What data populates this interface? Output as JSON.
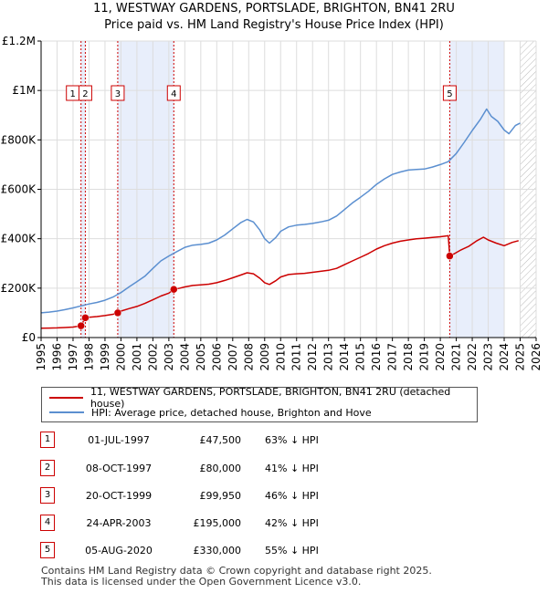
{
  "chart_data": {
    "type": "line",
    "title": "11, WESTWAY GARDENS, PORTSLADE, BRIGHTON, BN41 2RU",
    "subtitle": "Price paid vs. HM Land Registry's House Price Index (HPI)",
    "xlabel": "",
    "ylabel": "",
    "xlim": [
      1995,
      2026
    ],
    "ylim": [
      0,
      1200000
    ],
    "x_ticks": [
      "1995",
      "1996",
      "1997",
      "1998",
      "1999",
      "2000",
      "2001",
      "2002",
      "2003",
      "2004",
      "2005",
      "2006",
      "2007",
      "2008",
      "2009",
      "2010",
      "2011",
      "2012",
      "2013",
      "2014",
      "2015",
      "2016",
      "2017",
      "2018",
      "2019",
      "2020",
      "2021",
      "2022",
      "2023",
      "2024",
      "2025",
      "2026"
    ],
    "y_ticks": [
      {
        "value": 0,
        "label": "£0"
      },
      {
        "value": 200000,
        "label": "£200K"
      },
      {
        "value": 400000,
        "label": "£400K"
      },
      {
        "value": 600000,
        "label": "£600K"
      },
      {
        "value": 800000,
        "label": "£800K"
      },
      {
        "value": 1000000,
        "label": "£1M"
      },
      {
        "value": 1200000,
        "label": "£1.2M"
      }
    ],
    "shaded_ranges": [
      [
        1997.5,
        1997.77
      ],
      [
        1999.8,
        2003.31
      ],
      [
        2020.59,
        2024.0
      ]
    ],
    "future_hatch_start": 2025.0,
    "series": [
      {
        "name": "11, WESTWAY GARDENS, PORTSLADE, BRIGHTON, BN41 2RU (detached house)",
        "color": "#cc0000",
        "points": [
          [
            1995.0,
            38000
          ],
          [
            1995.5,
            38500
          ],
          [
            1996.0,
            39000
          ],
          [
            1996.5,
            40500
          ],
          [
            1997.0,
            42500
          ],
          [
            1997.5,
            47500
          ],
          [
            1997.77,
            80000
          ],
          [
            1998.0,
            82000
          ],
          [
            1998.5,
            85000
          ],
          [
            1999.0,
            89000
          ],
          [
            1999.5,
            94000
          ],
          [
            1999.8,
            99950
          ],
          [
            2000.0,
            107000
          ],
          [
            2000.5,
            117000
          ],
          [
            2001.0,
            126000
          ],
          [
            2001.5,
            138000
          ],
          [
            2002.0,
            153000
          ],
          [
            2002.5,
            168000
          ],
          [
            2003.0,
            180000
          ],
          [
            2003.31,
            195000
          ],
          [
            2003.7,
            200000
          ],
          [
            2004.0,
            205000
          ],
          [
            2004.5,
            211000
          ],
          [
            2005.0,
            213000
          ],
          [
            2005.5,
            216000
          ],
          [
            2006.0,
            222000
          ],
          [
            2006.5,
            231000
          ],
          [
            2007.0,
            242000
          ],
          [
            2007.5,
            253000
          ],
          [
            2007.9,
            262000
          ],
          [
            2008.3,
            258000
          ],
          [
            2008.7,
            240000
          ],
          [
            2009.0,
            222000
          ],
          [
            2009.3,
            215000
          ],
          [
            2009.7,
            230000
          ],
          [
            2010.0,
            245000
          ],
          [
            2010.5,
            255000
          ],
          [
            2011.0,
            258000
          ],
          [
            2011.5,
            260000
          ],
          [
            2012.0,
            264000
          ],
          [
            2012.5,
            268000
          ],
          [
            2013.0,
            272000
          ],
          [
            2013.5,
            280000
          ],
          [
            2014.0,
            295000
          ],
          [
            2014.5,
            310000
          ],
          [
            2015.0,
            325000
          ],
          [
            2015.5,
            340000
          ],
          [
            2016.0,
            358000
          ],
          [
            2016.5,
            372000
          ],
          [
            2017.0,
            382000
          ],
          [
            2017.5,
            390000
          ],
          [
            2018.0,
            395000
          ],
          [
            2018.5,
            400000
          ],
          [
            2019.0,
            402000
          ],
          [
            2019.5,
            405000
          ],
          [
            2020.0,
            408000
          ],
          [
            2020.5,
            412000
          ],
          [
            2020.59,
            330000
          ],
          [
            2020.9,
            340000
          ],
          [
            2021.3,
            355000
          ],
          [
            2021.8,
            370000
          ],
          [
            2022.3,
            392000
          ],
          [
            2022.7,
            406000
          ],
          [
            2023.0,
            395000
          ],
          [
            2023.5,
            382000
          ],
          [
            2024.0,
            372000
          ],
          [
            2024.5,
            385000
          ],
          [
            2024.9,
            392000
          ]
        ]
      },
      {
        "name": "HPI: Average price, detached house, Brighton and Hove",
        "color": "#5b8fd0",
        "points": [
          [
            1995.0,
            100000
          ],
          [
            1995.5,
            103000
          ],
          [
            1996.0,
            107000
          ],
          [
            1996.5,
            113000
          ],
          [
            1997.0,
            120000
          ],
          [
            1997.5,
            128000
          ],
          [
            1998.0,
            136000
          ],
          [
            1998.5,
            142000
          ],
          [
            1999.0,
            151000
          ],
          [
            1999.5,
            164000
          ],
          [
            2000.0,
            182000
          ],
          [
            2000.5,
            205000
          ],
          [
            2001.0,
            226000
          ],
          [
            2001.5,
            248000
          ],
          [
            2002.0,
            280000
          ],
          [
            2002.5,
            310000
          ],
          [
            2003.0,
            330000
          ],
          [
            2003.5,
            348000
          ],
          [
            2004.0,
            365000
          ],
          [
            2004.5,
            374000
          ],
          [
            2005.0,
            377000
          ],
          [
            2005.5,
            382000
          ],
          [
            2006.0,
            395000
          ],
          [
            2006.5,
            415000
          ],
          [
            2007.0,
            440000
          ],
          [
            2007.5,
            465000
          ],
          [
            2007.9,
            478000
          ],
          [
            2008.3,
            468000
          ],
          [
            2008.7,
            435000
          ],
          [
            2009.0,
            400000
          ],
          [
            2009.3,
            382000
          ],
          [
            2009.7,
            405000
          ],
          [
            2010.0,
            430000
          ],
          [
            2010.5,
            448000
          ],
          [
            2011.0,
            455000
          ],
          [
            2011.5,
            458000
          ],
          [
            2012.0,
            462000
          ],
          [
            2012.5,
            468000
          ],
          [
            2013.0,
            475000
          ],
          [
            2013.5,
            492000
          ],
          [
            2014.0,
            518000
          ],
          [
            2014.5,
            545000
          ],
          [
            2015.0,
            568000
          ],
          [
            2015.5,
            592000
          ],
          [
            2016.0,
            620000
          ],
          [
            2016.5,
            642000
          ],
          [
            2017.0,
            660000
          ],
          [
            2017.5,
            670000
          ],
          [
            2018.0,
            678000
          ],
          [
            2018.5,
            680000
          ],
          [
            2019.0,
            682000
          ],
          [
            2019.5,
            690000
          ],
          [
            2020.0,
            700000
          ],
          [
            2020.5,
            712000
          ],
          [
            2021.0,
            745000
          ],
          [
            2021.5,
            790000
          ],
          [
            2022.0,
            838000
          ],
          [
            2022.5,
            882000
          ],
          [
            2022.9,
            925000
          ],
          [
            2023.2,
            895000
          ],
          [
            2023.6,
            875000
          ],
          [
            2024.0,
            840000
          ],
          [
            2024.3,
            825000
          ],
          [
            2024.7,
            858000
          ],
          [
            2025.0,
            868000
          ]
        ]
      }
    ],
    "sales": [
      {
        "n": "1",
        "x": 1997.5,
        "price": 47500,
        "date": "01-JUL-1997",
        "price_label": "£47,500",
        "hpi": "63% ↓ HPI"
      },
      {
        "n": "2",
        "x": 1997.77,
        "price": 80000,
        "date": "08-OCT-1997",
        "price_label": "£80,000",
        "hpi": "41% ↓ HPI"
      },
      {
        "n": "3",
        "x": 1999.8,
        "price": 99950,
        "date": "20-OCT-1999",
        "price_label": "£99,950",
        "hpi": "46% ↓ HPI"
      },
      {
        "n": "4",
        "x": 2003.31,
        "price": 195000,
        "date": "24-APR-2003",
        "price_label": "£195,000",
        "hpi": "42% ↓ HPI"
      },
      {
        "n": "5",
        "x": 2020.59,
        "price": 330000,
        "date": "05-AUG-2020",
        "price_label": "£330,000",
        "hpi": "55% ↓ HPI"
      }
    ],
    "legend_position": "bottom-outside"
  },
  "colors": {
    "sale_line": "#cc0000",
    "hpi_line": "#5b8fd0",
    "shade": "#e8eefb",
    "grid": "#dddddd"
  },
  "legend": {
    "sale_label": "11, WESTWAY GARDENS, PORTSLADE, BRIGHTON, BN41 2RU (detached house)",
    "hpi_label": "HPI: Average price, detached house, Brighton and Hove"
  },
  "footer": {
    "line1": "Contains HM Land Registry data © Crown copyright and database right 2025.",
    "line2": "This data is licensed under the Open Government Licence v3.0."
  }
}
